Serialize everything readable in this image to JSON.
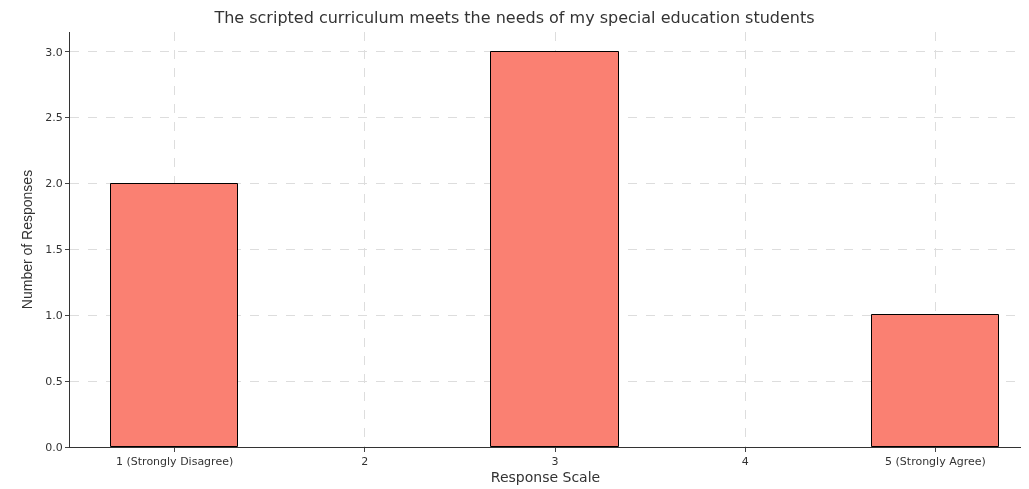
{
  "chart_data": {
    "type": "bar",
    "title": "The scripted curriculum meets the needs of my special education students",
    "xlabel": "Response Scale",
    "ylabel": "Number of Responses",
    "categories": [
      "1 (Strongly Disagree)",
      "2",
      "3",
      "4",
      "5 (Strongly Agree)"
    ],
    "values": [
      2,
      0,
      3,
      0,
      1
    ],
    "color": "#fa8072",
    "ylim": [
      0,
      3.15
    ],
    "yticks": [
      {
        "value": 0,
        "label": "0.0"
      },
      {
        "value": 0.5,
        "label": "0.5"
      },
      {
        "value": 1,
        "label": "1.0"
      },
      {
        "value": 1.5,
        "label": "1.5"
      },
      {
        "value": 2,
        "label": "2.0"
      },
      {
        "value": 2.5,
        "label": "2.5"
      },
      {
        "value": 3,
        "label": "3.0"
      }
    ],
    "grid": true
  }
}
